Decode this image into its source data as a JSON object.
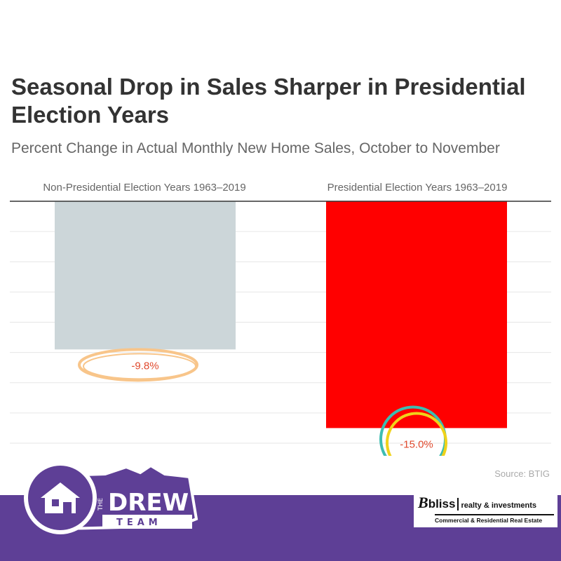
{
  "chart_data": {
    "type": "bar",
    "title": "Seasonal Drop in Sales Sharper in Presidential Election Years",
    "subtitle": "Percent Change in Actual Monthly New Home Sales, October to November",
    "categories": [
      "Non-Presidential Election Years 1963–2019",
      "Presidential Election Years 1963–2019"
    ],
    "values": [
      -9.8,
      -15.0
    ],
    "data_labels": [
      "-9.8%",
      "-15.0%"
    ],
    "ylim": [
      -16,
      0
    ],
    "grid": true,
    "source": "Source: BTIG",
    "colors": {
      "bar_non_presidential": "#ccd6d9",
      "bar_presidential": "#ff0000",
      "label": "#e04a2e",
      "axis": "#333333",
      "grid": "#e6e6e6",
      "circle_left": "#f8c58a",
      "circle_right_outer": "#3dbdb1",
      "circle_right_inner": "#f0d21a"
    }
  },
  "branding": {
    "drew_team": {
      "the": "THE",
      "name": "DREW",
      "team": "TEAM",
      "color": "#5e3f96"
    },
    "bliss": {
      "logo_word": "bliss",
      "tagline": "realty & investments",
      "subline": "Commercial & Residential Real Estate"
    }
  }
}
